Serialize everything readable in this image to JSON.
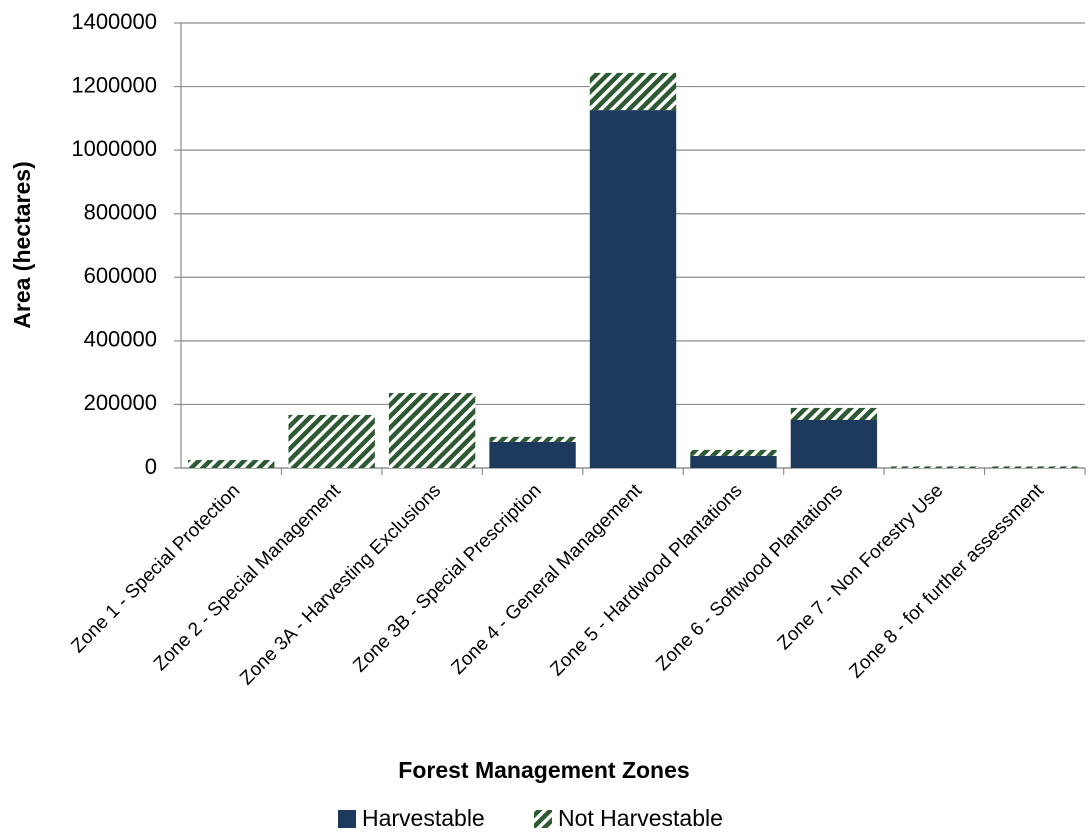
{
  "chart_data": {
    "type": "stacked_bar",
    "x_label": "Forest Management Zones",
    "y_label": "Area (hectares)",
    "categories": [
      "Zone 1 - Special Protection",
      "Zone 2 - Special Management",
      "Zone 3A - Harvesting Exclusions",
      "Zone 3B - Special Prescription",
      "Zone 4 - General Management",
      "Zone 5 - Hardwood Plantations",
      "Zone 6 - Softwood Plantations",
      "Zone 7 - Non Forestry Use",
      "Zone 8 - for further assessment"
    ],
    "series": [
      {
        "name": "Harvestable",
        "color": "#1d3a5c",
        "values": [
          0,
          0,
          0,
          82000,
          1126000,
          38000,
          151000,
          0,
          0
        ]
      },
      {
        "name": "Not Harvestable",
        "color": "#2d5a32",
        "values": [
          25000,
          167000,
          236000,
          16000,
          117000,
          19000,
          38000,
          5000,
          5000
        ]
      }
    ],
    "ylim": [
      0,
      1400000
    ],
    "yticks": [
      0,
      200000,
      400000,
      600000,
      800000,
      1000000,
      1200000,
      1400000
    ],
    "grid": true,
    "legend": "bottom"
  }
}
